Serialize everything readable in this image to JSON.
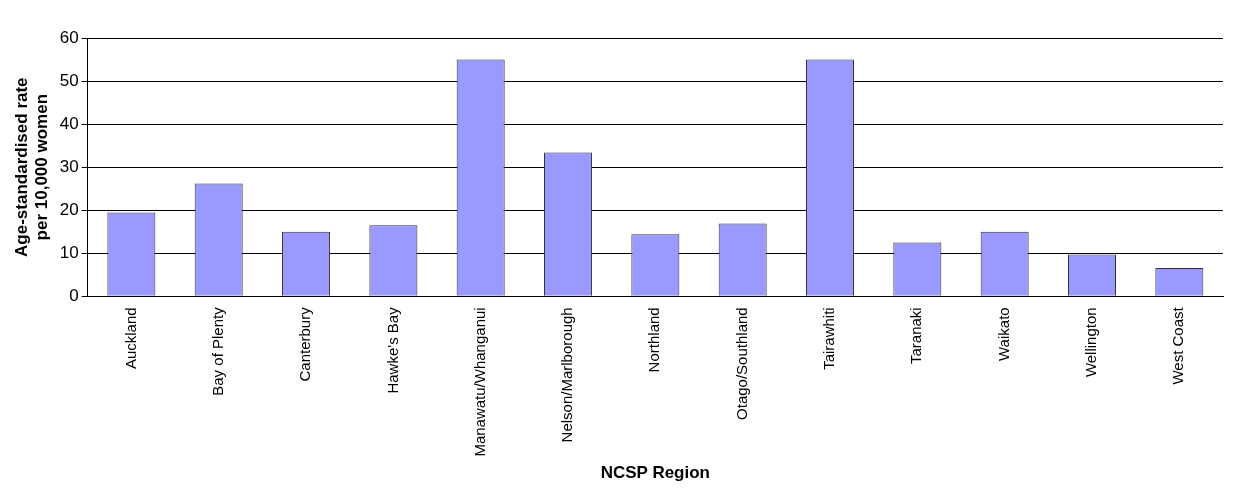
{
  "chart_data": {
    "type": "bar",
    "xlabel": "NCSP Region",
    "ylabel": "Age-standardised rate per 10,000 women",
    "categories": [
      "Auckland",
      "Bay of Plenty",
      "Canterbury",
      "Hawke's Bay",
      "Manawatu/Whanganui",
      "Nelson/Marlborough",
      "Northland",
      "Otago/Southland",
      "Tairawhiti",
      "Taranaki",
      "Waikato",
      "Wellington",
      "West Coast"
    ],
    "values": [
      19.5,
      26.2,
      15,
      16.5,
      55,
      33.4,
      14.4,
      16.9,
      55,
      12.5,
      15,
      9.7,
      6.6
    ],
    "color": "#9999ff",
    "ylim": [
      0,
      60
    ],
    "yticks": [
      0,
      10,
      20,
      30,
      40,
      50,
      60
    ],
    "grid": "y",
    "legend": false
  }
}
